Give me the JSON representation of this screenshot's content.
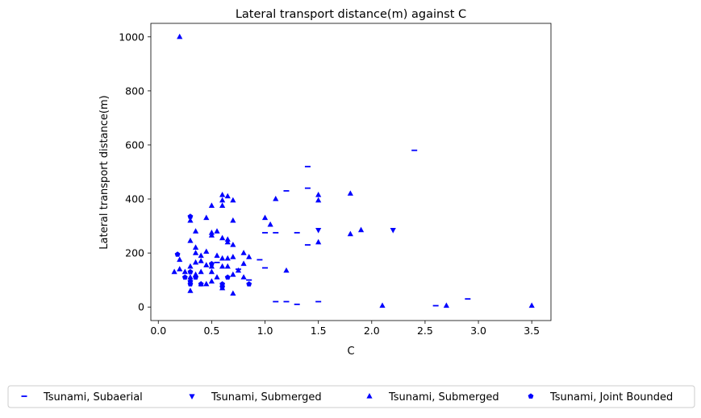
{
  "chart_data": {
    "type": "scatter",
    "title": "Lateral transport distance(m) against C",
    "xlabel": "C",
    "ylabel": "Lateral transport distance(m)",
    "xlim": [
      -0.07,
      3.68
    ],
    "ylim": [
      -50,
      1050
    ],
    "x_ticks": [
      0.0,
      0.5,
      1.0,
      1.5,
      2.0,
      2.5,
      3.0,
      3.5
    ],
    "x_tick_labels": [
      "0.0",
      "0.5",
      "1.0",
      "1.5",
      "2.0",
      "2.5",
      "3.0",
      "3.5"
    ],
    "y_ticks": [
      0,
      200,
      400,
      600,
      800,
      1000
    ],
    "y_tick_labels": [
      "0",
      "200",
      "400",
      "600",
      "800",
      "1000"
    ],
    "grid": false,
    "legend_position": "bottom-center",
    "marker_color": "#0000ff",
    "series": [
      {
        "name": "Tsunami, Subaerial",
        "marker": "hline",
        "points": [
          [
            0.55,
            165
          ],
          [
            0.75,
            140
          ],
          [
            0.85,
            100
          ],
          [
            0.95,
            175
          ],
          [
            1.0,
            275
          ],
          [
            1.0,
            145
          ],
          [
            1.1,
            275
          ],
          [
            1.1,
            20
          ],
          [
            1.2,
            430
          ],
          [
            1.2,
            20
          ],
          [
            1.3,
            275
          ],
          [
            1.3,
            10
          ],
          [
            1.4,
            520
          ],
          [
            1.4,
            440
          ],
          [
            1.4,
            230
          ],
          [
            1.5,
            20
          ],
          [
            2.4,
            580
          ],
          [
            2.6,
            5
          ],
          [
            2.9,
            30
          ]
        ]
      },
      {
        "name": "Tsunami, Submerged",
        "marker": "triangle-down",
        "points": [
          [
            1.5,
            285
          ],
          [
            2.2,
            285
          ]
        ]
      },
      {
        "name": "Tsunami, Submerged",
        "marker": "triangle-up",
        "points": [
          [
            0.2,
            1000
          ],
          [
            0.15,
            130
          ],
          [
            0.2,
            175
          ],
          [
            0.2,
            140
          ],
          [
            0.25,
            130
          ],
          [
            0.3,
            320
          ],
          [
            0.3,
            245
          ],
          [
            0.3,
            150
          ],
          [
            0.3,
            110
          ],
          [
            0.3,
            60
          ],
          [
            0.35,
            280
          ],
          [
            0.35,
            220
          ],
          [
            0.35,
            200
          ],
          [
            0.35,
            165
          ],
          [
            0.35,
            120
          ],
          [
            0.4,
            190
          ],
          [
            0.4,
            170
          ],
          [
            0.4,
            130
          ],
          [
            0.4,
            85
          ],
          [
            0.45,
            330
          ],
          [
            0.45,
            205
          ],
          [
            0.45,
            155
          ],
          [
            0.45,
            85
          ],
          [
            0.5,
            375
          ],
          [
            0.5,
            275
          ],
          [
            0.5,
            265
          ],
          [
            0.5,
            150
          ],
          [
            0.5,
            130
          ],
          [
            0.5,
            95
          ],
          [
            0.55,
            280
          ],
          [
            0.55,
            190
          ],
          [
            0.55,
            110
          ],
          [
            0.6,
            415
          ],
          [
            0.6,
            395
          ],
          [
            0.6,
            375
          ],
          [
            0.6,
            255
          ],
          [
            0.6,
            180
          ],
          [
            0.6,
            150
          ],
          [
            0.6,
            70
          ],
          [
            0.65,
            410
          ],
          [
            0.65,
            250
          ],
          [
            0.65,
            240
          ],
          [
            0.65,
            180
          ],
          [
            0.65,
            150
          ],
          [
            0.7,
            395
          ],
          [
            0.7,
            320
          ],
          [
            0.7,
            230
          ],
          [
            0.7,
            185
          ],
          [
            0.7,
            120
          ],
          [
            0.7,
            50
          ],
          [
            0.75,
            135
          ],
          [
            0.8,
            200
          ],
          [
            0.8,
            160
          ],
          [
            0.8,
            110
          ],
          [
            0.85,
            185
          ],
          [
            1.0,
            330
          ],
          [
            1.05,
            305
          ],
          [
            1.1,
            400
          ],
          [
            1.2,
            135
          ],
          [
            1.5,
            415
          ],
          [
            1.5,
            395
          ],
          [
            1.5,
            240
          ],
          [
            1.8,
            420
          ],
          [
            1.8,
            270
          ],
          [
            1.9,
            285
          ],
          [
            2.1,
            5
          ],
          [
            2.7,
            5
          ],
          [
            3.5,
            5
          ]
        ]
      },
      {
        "name": "Tsunami, Joint Bounded",
        "marker": "pentagon",
        "points": [
          [
            0.18,
            195
          ],
          [
            0.3,
            335
          ],
          [
            0.3,
            130
          ],
          [
            0.3,
            95
          ],
          [
            0.3,
            85
          ],
          [
            0.35,
            110
          ],
          [
            0.4,
            85
          ],
          [
            0.5,
            160
          ],
          [
            0.6,
            85
          ],
          [
            0.6,
            75
          ],
          [
            0.65,
            110
          ],
          [
            0.85,
            85
          ],
          [
            0.25,
            110
          ]
        ]
      }
    ]
  }
}
